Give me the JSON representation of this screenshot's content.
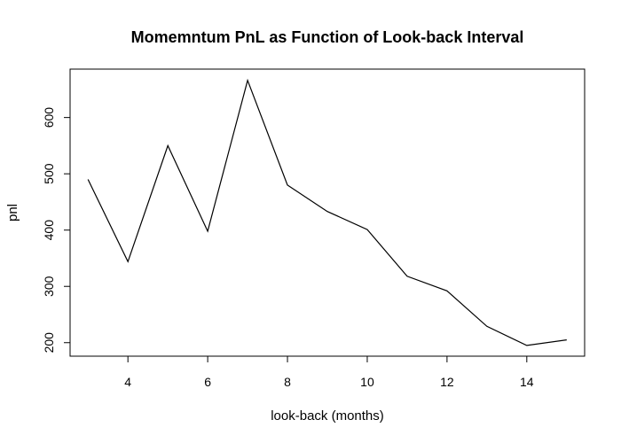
{
  "chart_data": {
    "type": "line",
    "title": "Momemntum PnL as Function of Look-back Interval",
    "xlabel": "look-back (months)",
    "ylabel": "pnl",
    "x": [
      3,
      4,
      5,
      6,
      7,
      8,
      9,
      10,
      11,
      12,
      13,
      14,
      15
    ],
    "y": [
      490,
      344,
      550,
      398,
      666,
      480,
      433,
      401,
      318,
      292,
      229,
      195,
      205
    ],
    "xlim": [
      2.55,
      15.45
    ],
    "ylim": [
      176,
      686
    ],
    "xticks": [
      4,
      6,
      8,
      10,
      12,
      14
    ],
    "yticks": [
      200,
      300,
      400,
      500,
      600
    ],
    "grid": false,
    "line_color": "#000000"
  }
}
